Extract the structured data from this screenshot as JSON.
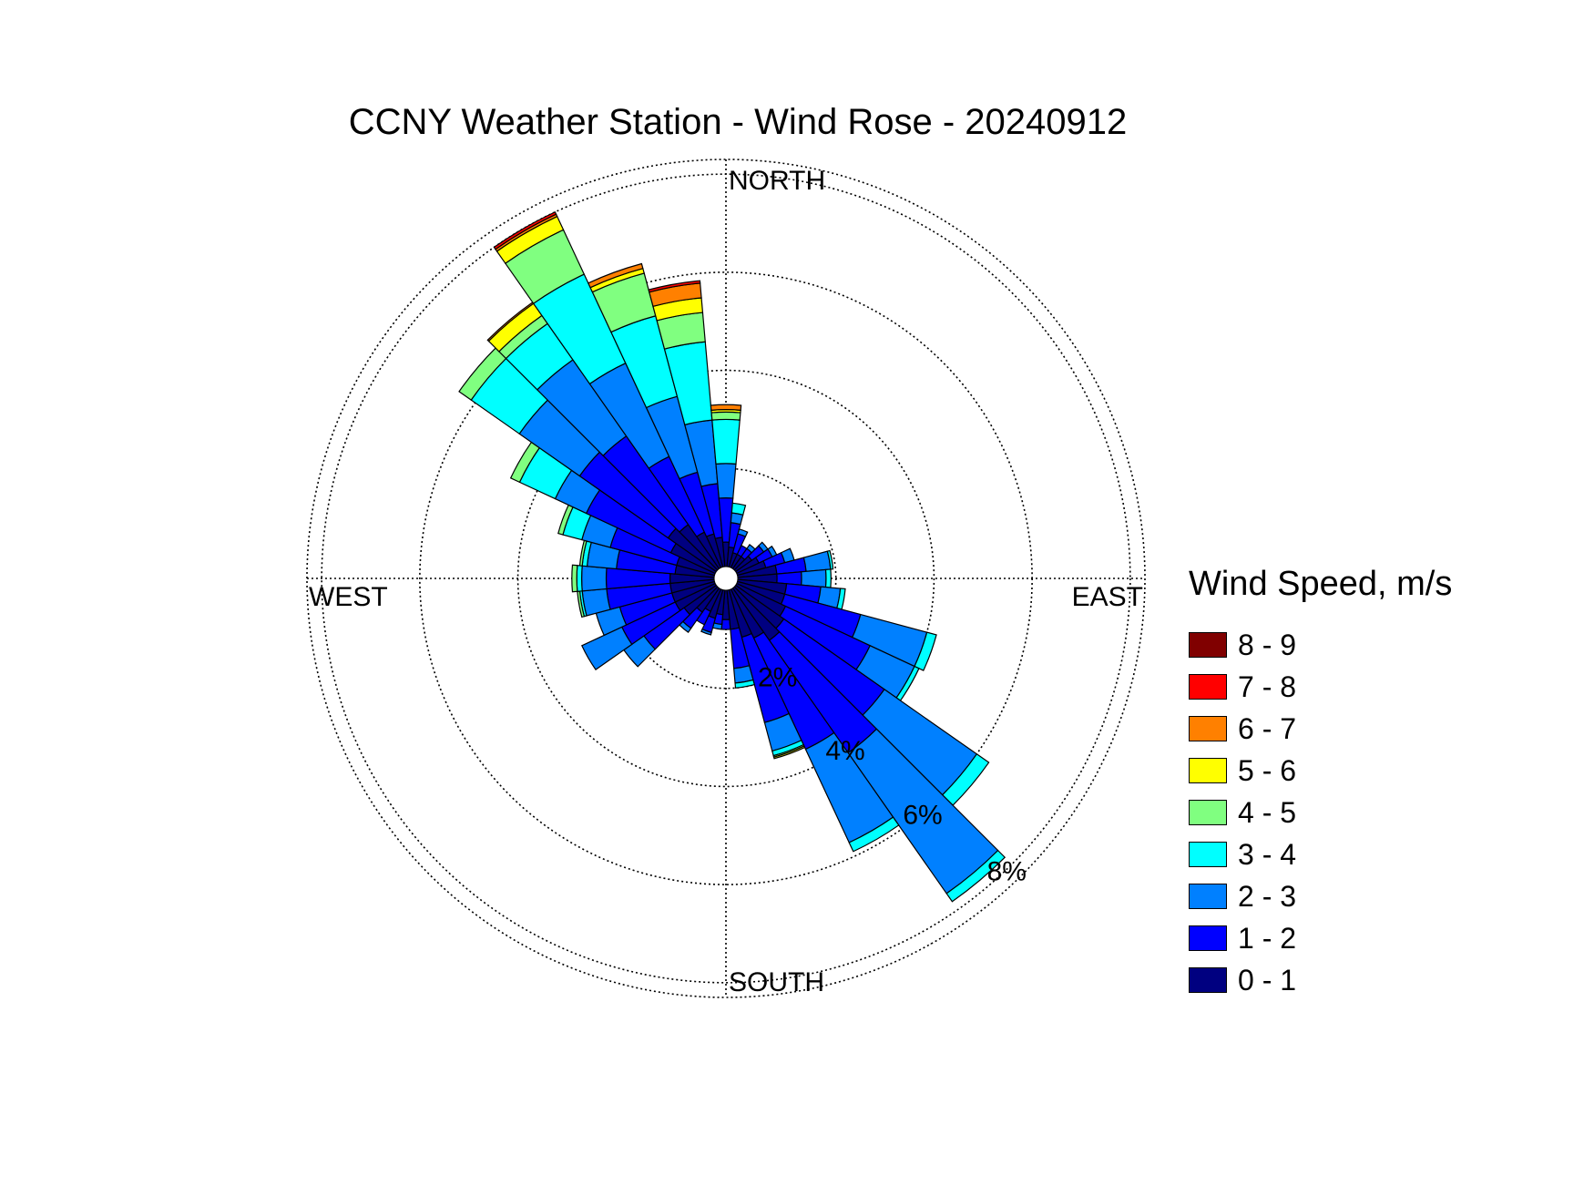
{
  "chart_data": {
    "type": "wind-rose",
    "title": "CCNY Weather Station - Wind Rose - 20240912",
    "direction_labels": {
      "north": "NORTH",
      "east": "EAST",
      "south": "SOUTH",
      "west": "WEST"
    },
    "radial_tick_labels": [
      "2%",
      "4%",
      "6%",
      "8%"
    ],
    "radial_ticks": [
      2,
      4,
      6,
      8
    ],
    "radial_max": 8.3,
    "legend_title": "Wind Speed, m/s",
    "bins": [
      {
        "label": "0 - 1",
        "color": "#000080"
      },
      {
        "label": "1 - 2",
        "color": "#0000ff"
      },
      {
        "label": "2 - 3",
        "color": "#0080ff"
      },
      {
        "label": "3 - 4",
        "color": "#00ffff"
      },
      {
        "label": "4 - 5",
        "color": "#80ff80"
      },
      {
        "label": "5 - 6",
        "color": "#ffff00"
      },
      {
        "label": "6 - 7",
        "color": "#ff8000"
      },
      {
        "label": "7 - 8",
        "color": "#ff0000"
      },
      {
        "label": "8 - 9",
        "color": "#800000"
      }
    ],
    "sector_width_deg": 10,
    "direction_mode": "blowing-toward",
    "sectors": [
      {
        "dir": 0,
        "values": [
          0.6,
          0.2
        ]
      },
      {
        "dir": 10,
        "values": [
          0.5,
          0.2,
          0.1
        ]
      },
      {
        "dir": 20,
        "values": [
          0.6,
          0.3,
          0.05
        ]
      },
      {
        "dir": 30,
        "values": [
          0.5,
          0.3
        ]
      },
      {
        "dir": 40,
        "values": [
          0.6,
          0.4,
          0.1
        ]
      },
      {
        "dir": 50,
        "values": [
          0.8,
          1.0,
          0.5
        ]
      },
      {
        "dir": 60,
        "values": [
          0.9,
          1.2,
          0.9
        ]
      },
      {
        "dir": 70,
        "values": [
          0.9,
          1.1,
          0.5
        ]
      },
      {
        "dir": 80,
        "values": [
          0.9,
          1.3,
          0.5,
          0.05,
          0.05
        ]
      },
      {
        "dir": 90,
        "values": [
          0.9,
          1.3,
          0.5,
          0.1,
          0.1
        ]
      },
      {
        "dir": 100,
        "values": [
          0.8,
          1.2,
          0.6,
          0.1,
          0.05
        ]
      },
      {
        "dir": 110,
        "values": [
          0.8,
          1.4,
          0.6,
          0.4,
          0.1
        ]
      },
      {
        "dir": 120,
        "values": [
          1.0,
          1.9,
          0.7,
          0.8,
          0.2
        ]
      },
      {
        "dir": 130,
        "values": [
          1.2,
          2.2,
          1.5,
          1.2,
          0.3
        ]
      },
      {
        "dir": 140,
        "values": [
          1.1,
          2.2,
          1.9,
          0.9,
          0.2,
          0.3,
          0.03
        ]
      },
      {
        "dir": 150,
        "values": [
          0.8,
          1.7,
          2.1,
          2.0,
          1.0,
          0.3,
          0.05,
          0.05
        ]
      },
      {
        "dir": 160,
        "values": [
          0.7,
          1.3,
          1.6,
          1.7,
          0.9,
          0.1,
          0.1
        ]
      },
      {
        "dir": 170,
        "values": [
          0.6,
          1.1,
          1.3,
          1.6,
          0.6,
          0.3,
          0.3,
          0.05
        ]
      },
      {
        "dir": 180,
        "values": [
          0.5,
          0.9,
          0.7,
          0.9,
          0.15,
          0.05,
          0.1
        ]
      },
      {
        "dir": 190,
        "values": [
          0.4,
          0.5,
          0.2,
          0.2
        ]
      },
      {
        "dir": 200,
        "values": [
          0.3,
          0.4,
          0.1
        ]
      },
      {
        "dir": 210,
        "values": [
          0.3,
          0.2
        ]
      },
      {
        "dir": 220,
        "values": [
          0.3,
          0.2,
          0.1
        ]
      },
      {
        "dir": 230,
        "values": [
          0.4,
          0.3,
          0.1
        ]
      },
      {
        "dir": 240,
        "values": [
          0.5,
          0.3,
          0.1
        ]
      },
      {
        "dir": 250,
        "values": [
          0.6,
          0.4,
          0.2
        ]
      },
      {
        "dir": 260,
        "values": [
          0.8,
          0.6,
          0.5,
          0.05
        ]
      },
      {
        "dir": 270,
        "values": [
          0.8,
          0.5,
          0.5,
          0.1
        ]
      },
      {
        "dir": 280,
        "values": [
          1.0,
          0.7,
          0.4,
          0.1
        ]
      },
      {
        "dir": 290,
        "values": [
          1.0,
          1.6,
          1.4,
          0.2
        ]
      },
      {
        "dir": 300,
        "values": [
          1.1,
          1.9,
          1.0,
          0.1
        ]
      },
      {
        "dir": 310,
        "values": [
          1.2,
          2.5,
          2.3,
          0.3
        ]
      },
      {
        "dir": 320,
        "values": [
          1.3,
          2.8,
          3.5,
          0.2
        ]
      },
      {
        "dir": 330,
        "values": [
          1.1,
          2.5,
          2.1,
          0.2
        ]
      },
      {
        "dir": 340,
        "values": [
          1.0,
          1.8,
          0.6,
          0.1,
          0.03,
          0.03
        ]
      },
      {
        "dir": 350,
        "values": [
          0.8,
          0.8,
          0.3,
          0.1
        ]
      }
    ]
  }
}
